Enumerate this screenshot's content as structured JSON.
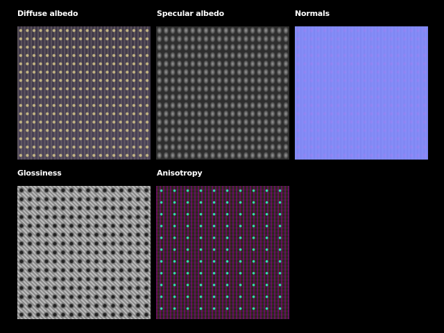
{
  "panels": [
    {
      "label": "Diffuse albedo"
    },
    {
      "label": "Specular albedo"
    },
    {
      "label": "Normals"
    },
    {
      "label": "Glossiness"
    },
    {
      "label": "Anisotropy"
    }
  ]
}
